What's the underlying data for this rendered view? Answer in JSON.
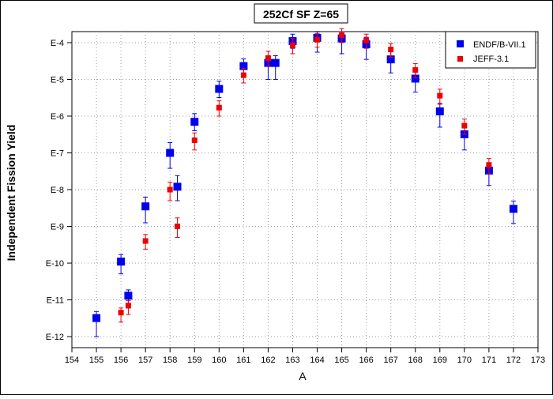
{
  "chart_data": {
    "type": "scatter",
    "title": "252Cf SF Z=65",
    "xlabel": "A",
    "ylabel": "Independent Fission Yield",
    "xlim": [
      154,
      173
    ],
    "ylim_log10": [
      -12.3,
      -3.7
    ],
    "y_scale": "log",
    "grid": true,
    "legend_position": "top-right",
    "x_ticks": [
      "154",
      "155",
      "156",
      "157",
      "158",
      "159",
      "160",
      "161",
      "162",
      "163",
      "164",
      "165",
      "166",
      "167",
      "168",
      "169",
      "170",
      "171",
      "172",
      "173"
    ],
    "y_ticks": [
      {
        "label": "E-4",
        "exp": -4
      },
      {
        "label": "E-5",
        "exp": -5
      },
      {
        "label": "E-6",
        "exp": -6
      },
      {
        "label": "E-7",
        "exp": -7
      },
      {
        "label": "E-8",
        "exp": -8
      },
      {
        "label": "E-9",
        "exp": -9
      },
      {
        "label": "E-10",
        "exp": -10
      },
      {
        "label": "E-11",
        "exp": -11
      },
      {
        "label": "E-12",
        "exp": -12
      }
    ],
    "series": [
      {
        "name": "ENDF/B-VII.1",
        "color": "#0000ee",
        "marker": "square-large",
        "points": [
          {
            "x": 155,
            "y": 3.2e-12,
            "err_low": 2.2e-12,
            "err_high": 1.6e-12
          },
          {
            "x": 156,
            "y": 1.1e-10,
            "err_low": 5.9e-11,
            "err_high": 6.1e-11
          },
          {
            "x": 156.3,
            "y": 1.3e-11,
            "err_low": 7e-12,
            "err_high": 5.7e-12
          },
          {
            "x": 157,
            "y": 3.5e-09,
            "err_low": 2.25e-09,
            "err_high": 2.75e-09
          },
          {
            "x": 158,
            "y": 1e-07,
            "err_low": 6.2e-08,
            "err_high": 9e-08
          },
          {
            "x": 158.3,
            "y": 1.2e-08,
            "err_low": 7e-09,
            "err_high": 1.2e-08
          },
          {
            "x": 159,
            "y": 7e-07,
            "err_low": 3e-07,
            "err_high": 4.7e-07
          },
          {
            "x": 160,
            "y": 5.5e-06,
            "err_low": 2.3e-06,
            "err_high": 3.4e-06
          },
          {
            "x": 161,
            "y": 2.3e-05,
            "err_low": 9e-06,
            "err_high": 1.3e-05
          },
          {
            "x": 162,
            "y": 2.8e-05,
            "err_low": 1.8e-05,
            "err_high": 1.6e-05
          },
          {
            "x": 162.3,
            "y": 2.8e-05,
            "err_low": 1.8e-05,
            "err_high": 1.6e-05
          },
          {
            "x": 163,
            "y": 0.00011,
            "err_low": 4e-05,
            "err_high": 6e-05
          },
          {
            "x": 164,
            "y": 0.000135,
            "err_low": 8e-05,
            "err_high": 6e-05
          },
          {
            "x": 165,
            "y": 0.00013,
            "err_low": 8e-05,
            "err_high": 7e-05
          },
          {
            "x": 166,
            "y": 9e-05,
            "err_low": 5.5e-05,
            "err_high": 5e-05
          },
          {
            "x": 167,
            "y": 3.5e-05,
            "err_low": 2e-05,
            "err_high": 2.5e-05
          },
          {
            "x": 168,
            "y": 1.05e-05,
            "err_low": 6e-06,
            "err_high": 8e-06
          },
          {
            "x": 169,
            "y": 1.35e-06,
            "err_low": 8.5e-07,
            "err_high": 9e-07
          },
          {
            "x": 170,
            "y": 3.2e-07,
            "err_low": 2e-07,
            "err_high": 1.8e-07
          },
          {
            "x": 171,
            "y": 3.3e-08,
            "err_low": 2e-08,
            "err_high": 1.8e-08
          },
          {
            "x": 172,
            "y": 3e-09,
            "err_low": 1.8e-09,
            "err_high": 1.9e-09
          }
        ]
      },
      {
        "name": "JEFF-3.1",
        "color": "#ee0000",
        "marker": "square-small",
        "points": [
          {
            "x": 156,
            "y": 4.5e-12,
            "err_low": 2e-12,
            "err_high": 1.5e-12
          },
          {
            "x": 156.3,
            "y": 7e-12,
            "err_low": 3e-12,
            "err_high": 2.5e-12
          },
          {
            "x": 157,
            "y": 4e-10,
            "err_low": 1.6e-10,
            "err_high": 2e-10
          },
          {
            "x": 158,
            "y": 1e-08,
            "err_low": 5e-09,
            "err_high": 6e-09
          },
          {
            "x": 158.3,
            "y": 1e-09,
            "err_low": 5e-10,
            "err_high": 7e-10
          },
          {
            "x": 159,
            "y": 2.2e-07,
            "err_low": 1e-07,
            "err_high": 1.3e-07
          },
          {
            "x": 160,
            "y": 1.7e-06,
            "err_low": 7e-07,
            "err_high": 9e-07
          },
          {
            "x": 161,
            "y": 1.3e-05,
            "err_low": 5e-06,
            "err_high": 7e-06
          },
          {
            "x": 162,
            "y": 3.8e-05,
            "err_low": 1.5e-05,
            "err_high": 2e-05
          },
          {
            "x": 163,
            "y": 8.5e-05,
            "err_low": 3.5e-05,
            "err_high": 4.5e-05
          },
          {
            "x": 164,
            "y": 0.00012,
            "err_low": 4.5e-05,
            "err_high": 5.5e-05
          },
          {
            "x": 165,
            "y": 0.00016,
            "err_low": 6e-05,
            "err_high": 8e-05
          },
          {
            "x": 166,
            "y": 0.000115,
            "err_low": 4.5e-05,
            "err_high": 5.5e-05
          },
          {
            "x": 167,
            "y": 6.5e-05,
            "err_low": 2.5e-05,
            "err_high": 3e-05
          },
          {
            "x": 168,
            "y": 1.8e-05,
            "err_low": 7e-06,
            "err_high": 9e-06
          },
          {
            "x": 169,
            "y": 3.6e-06,
            "err_low": 1.5e-06,
            "err_high": 1.8e-06
          },
          {
            "x": 170,
            "y": 5.5e-07,
            "err_low": 2.3e-07,
            "err_high": 2.8e-07
          },
          {
            "x": 171,
            "y": 4.7e-08,
            "err_low": 2e-08,
            "err_high": 2.3e-08
          }
        ]
      }
    ]
  }
}
